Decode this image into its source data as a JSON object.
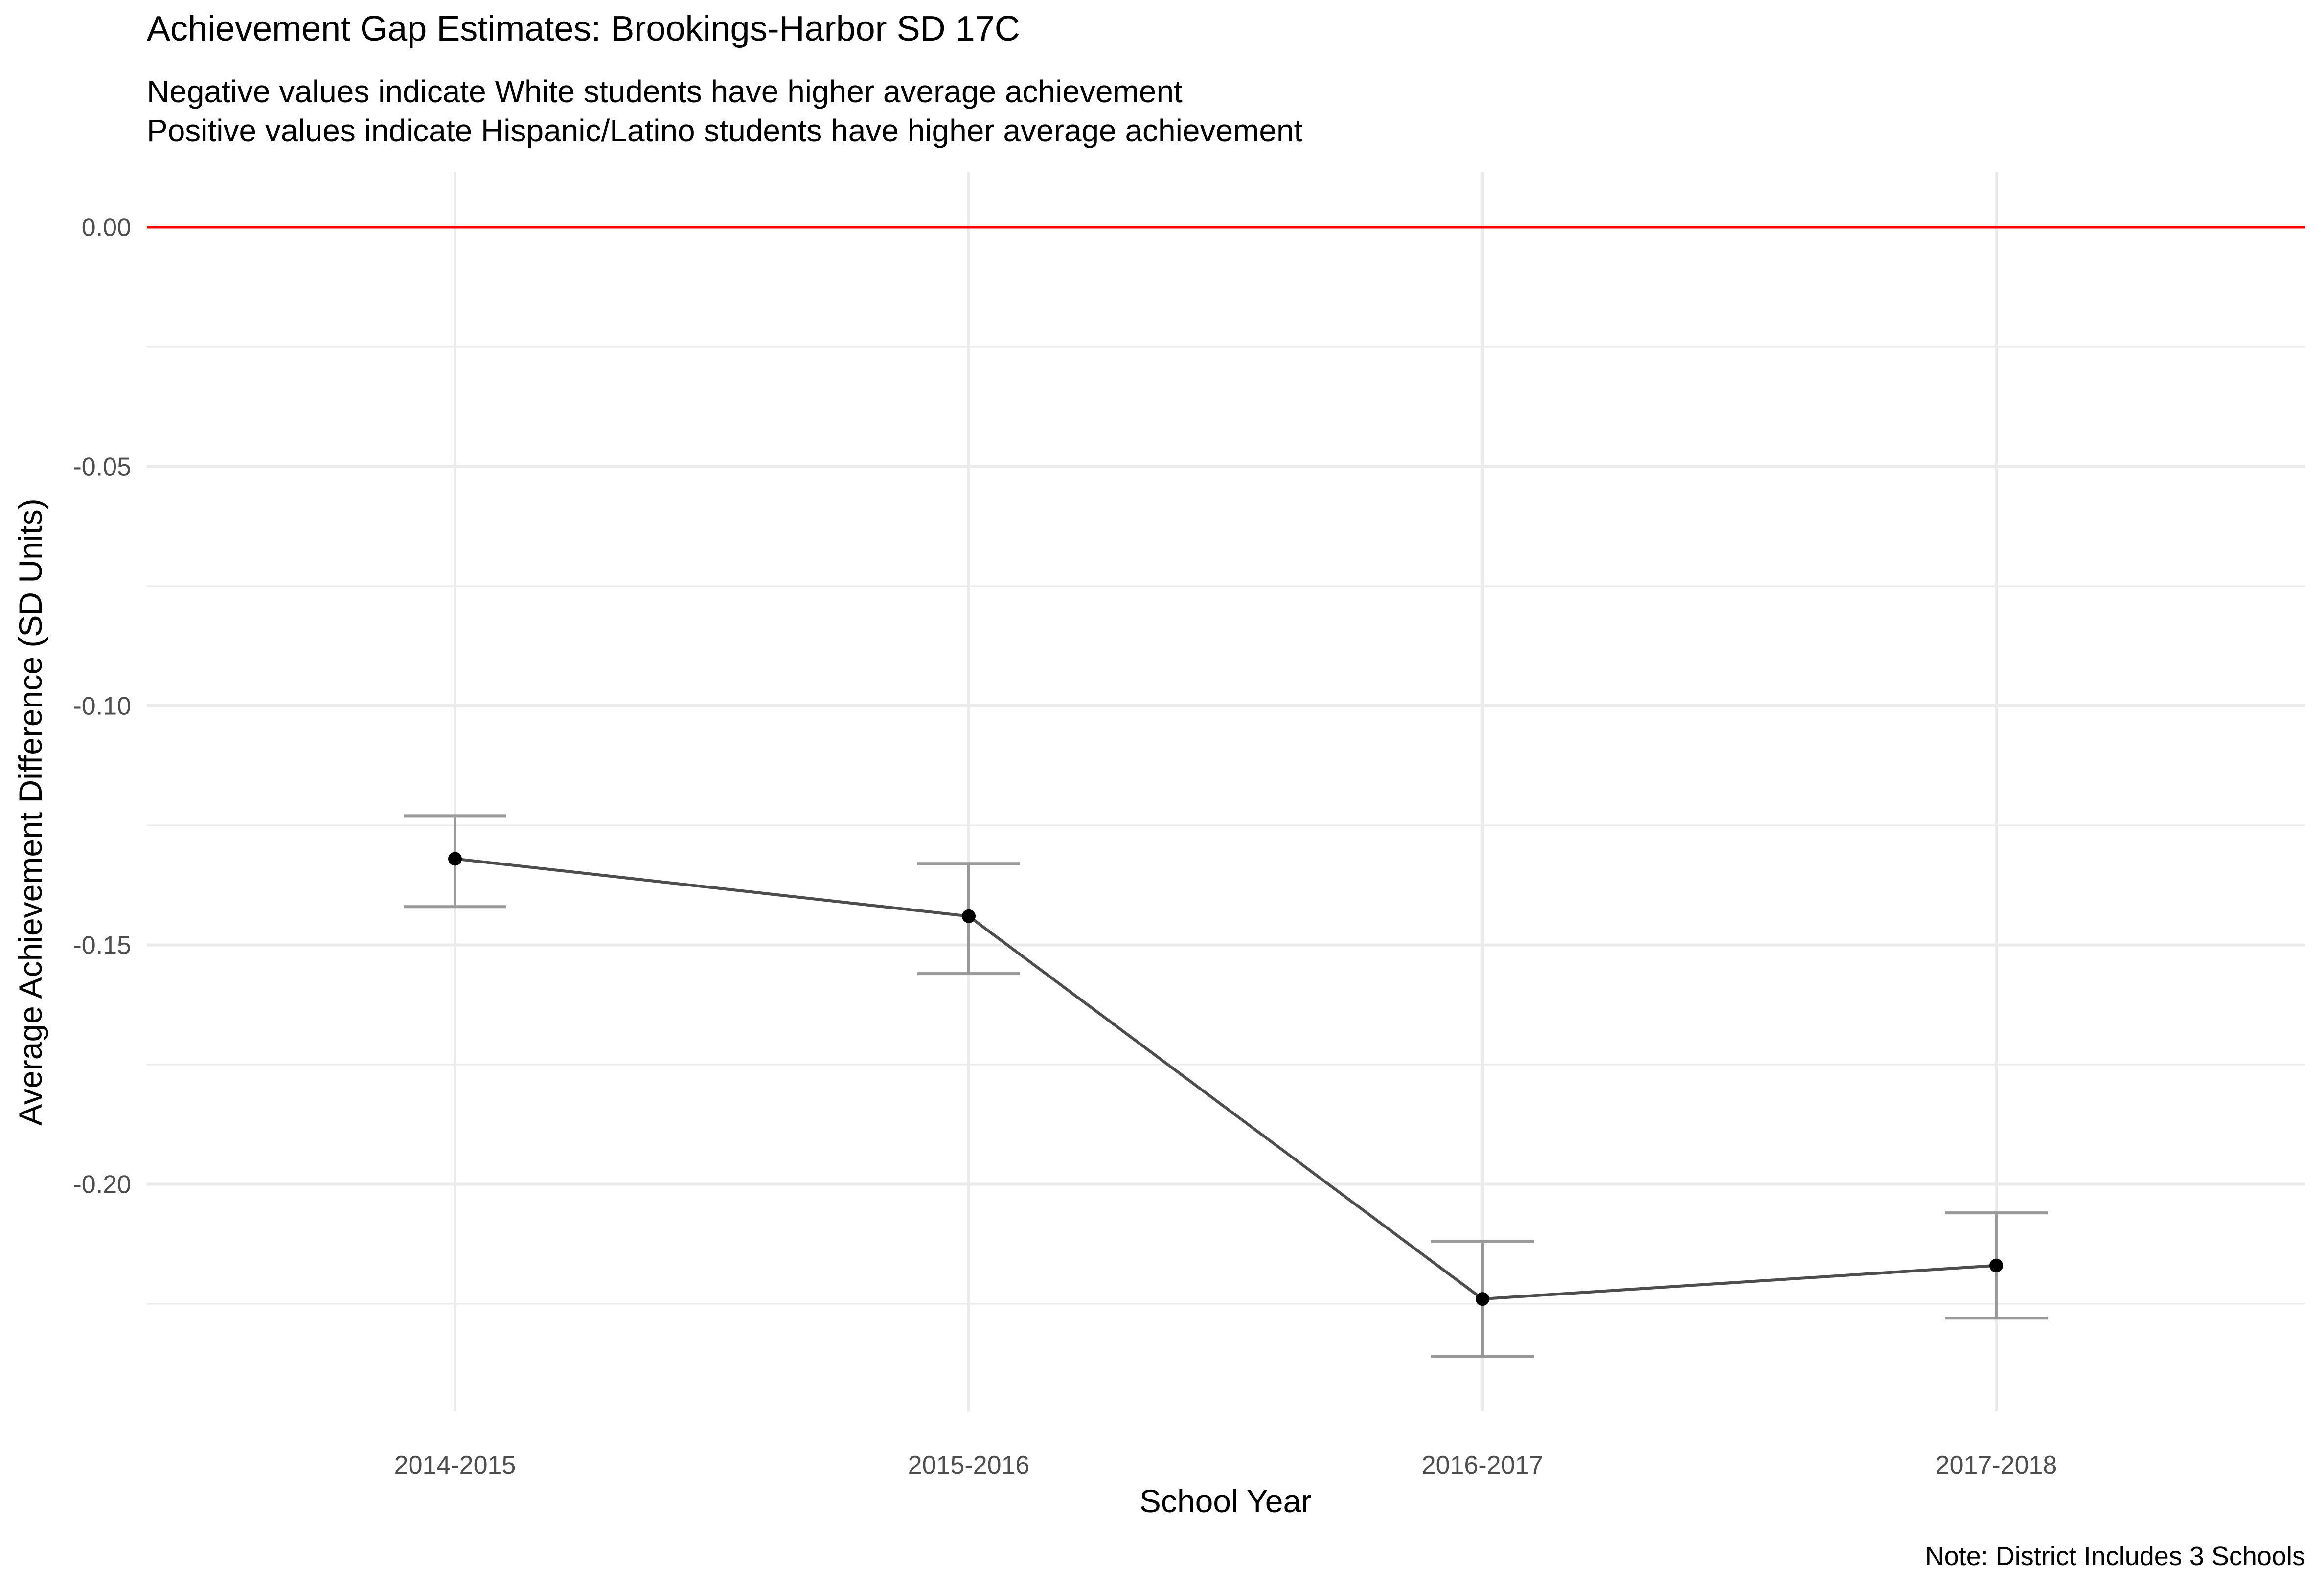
{
  "chart_data": {
    "type": "line",
    "title": "Achievement Gap Estimates: Brookings-Harbor SD 17C",
    "subtitle": [
      "Negative values indicate White students have higher average achievement",
      "Positive values indicate Hispanic/Latino students have higher average achievement"
    ],
    "xlabel": "School Year",
    "ylabel": "Average Achievement Difference (SD Units)",
    "caption": "Note: District Includes 3 Schools",
    "categories": [
      "2014-2015",
      "2015-2016",
      "2016-2017",
      "2017-2018"
    ],
    "series": [
      {
        "values": [
          -0.132,
          -0.144,
          -0.224,
          -0.217
        ],
        "lower": [
          -0.142,
          -0.156,
          -0.236,
          -0.228
        ],
        "upper": [
          -0.123,
          -0.133,
          -0.212,
          -0.206
        ]
      }
    ],
    "reference_line": {
      "y": 0.0,
      "color": "#ff0000"
    },
    "yticks": [
      0.0,
      -0.05,
      -0.1,
      -0.15,
      -0.2
    ],
    "ytick_labels": [
      "0.00",
      "-0.05",
      "-0.10",
      "-0.15",
      "-0.20"
    ],
    "ylim": [
      -0.2475,
      0.0115
    ],
    "grid": true,
    "colors": {
      "line": "#4d4d4d",
      "errorbar": "#999999",
      "point": "#000000",
      "grid": "#ebebeb"
    }
  }
}
